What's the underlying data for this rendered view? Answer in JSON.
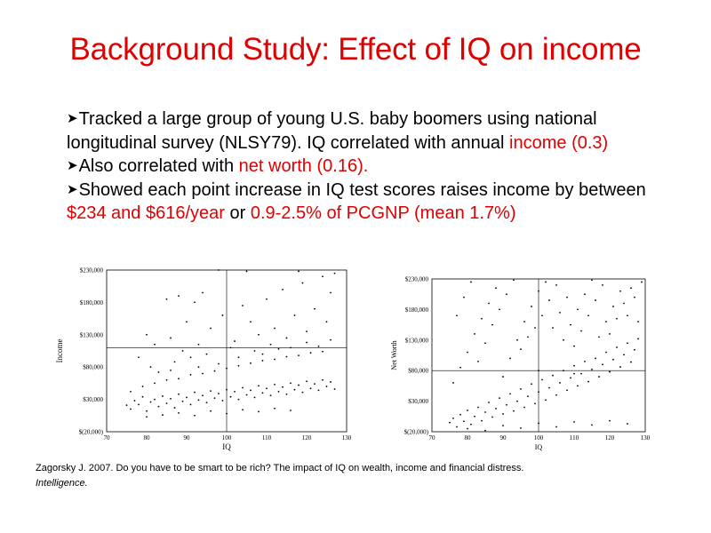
{
  "slide": {
    "title": "Background Study: Effect of IQ on income",
    "bullets": [
      {
        "segments": [
          {
            "text": "Tracked a large group of young U.S. baby boomers using national longitudinal survey (NLSY79). IQ correlated with annual ",
            "highlight": false
          },
          {
            "text": "income (0.3)",
            "highlight": true
          }
        ]
      },
      {
        "segments": [
          {
            "text": "Also correlated with ",
            "highlight": false
          },
          {
            "text": "net worth (0.16).",
            "highlight": true
          }
        ]
      },
      {
        "segments": [
          {
            "text": "Showed each point increase in IQ test scores raises income by between ",
            "highlight": false
          },
          {
            "text": "$234 and $616/year",
            "highlight": true
          },
          {
            "text": " or ",
            "highlight": false
          },
          {
            "text": "0.9-2.5% of PCGNP (mean 1.7%)",
            "highlight": true
          }
        ]
      }
    ],
    "citation": {
      "text": "Zagorsky J. 2007. Do you have to be smart to be rich? The impact of IQ on wealth, income and financial distress.",
      "journal": "Intelligence."
    }
  },
  "colors": {
    "accent": "#e00000",
    "text": "#000000"
  },
  "chart_data": [
    {
      "type": "scatter",
      "title": "",
      "xlabel": "IQ",
      "ylabel": "Income",
      "xlim": [
        70,
        130
      ],
      "ylim": [
        -20000,
        230000
      ],
      "x_ticks": [
        70,
        80,
        90,
        100,
        110,
        120,
        130
      ],
      "x_tick_labels": [
        "70",
        "80",
        "90",
        "100",
        "110",
        "120",
        "130"
      ],
      "y_ticks": [
        -20000,
        30000,
        80000,
        130000,
        180000,
        230000
      ],
      "y_tick_labels": [
        "$(20,000)",
        "$30,000",
        "$80,000",
        "$130,000",
        "$180,000",
        "$230,000"
      ],
      "reference_lines": {
        "x": 100,
        "y": 110000
      },
      "grid": false,
      "legend": "none",
      "points": [
        [
          75,
          21000
        ],
        [
          76,
          15000
        ],
        [
          77,
          28000
        ],
        [
          78,
          22000
        ],
        [
          79,
          34000
        ],
        [
          80,
          12000
        ],
        [
          81,
          26000
        ],
        [
          82,
          30000
        ],
        [
          83,
          19000
        ],
        [
          84,
          35000
        ],
        [
          85,
          24000
        ],
        [
          86,
          31000
        ],
        [
          87,
          17000
        ],
        [
          88,
          38000
        ],
        [
          89,
          27000
        ],
        [
          90,
          33000
        ],
        [
          91,
          22000
        ],
        [
          92,
          41000
        ],
        [
          93,
          29000
        ],
        [
          94,
          36000
        ],
        [
          95,
          25000
        ],
        [
          96,
          43000
        ],
        [
          97,
          32000
        ],
        [
          98,
          39000
        ],
        [
          99,
          28000
        ],
        [
          100,
          45000
        ],
        [
          101,
          34000
        ],
        [
          102,
          42000
        ],
        [
          103,
          30000
        ],
        [
          104,
          48000
        ],
        [
          105,
          37000
        ],
        [
          106,
          44000
        ],
        [
          107,
          33000
        ],
        [
          108,
          51000
        ],
        [
          109,
          40000
        ],
        [
          110,
          47000
        ],
        [
          111,
          36000
        ],
        [
          112,
          53000
        ],
        [
          113,
          42000
        ],
        [
          114,
          49000
        ],
        [
          115,
          38000
        ],
        [
          116,
          55000
        ],
        [
          117,
          45000
        ],
        [
          118,
          52000
        ],
        [
          119,
          41000
        ],
        [
          120,
          58000
        ],
        [
          121,
          47000
        ],
        [
          122,
          54000
        ],
        [
          123,
          44000
        ],
        [
          124,
          60000
        ],
        [
          125,
          50000
        ],
        [
          126,
          57000
        ],
        [
          127,
          46000
        ],
        [
          76,
          42000
        ],
        [
          79,
          50000
        ],
        [
          82,
          55000
        ],
        [
          85,
          60000
        ],
        [
          88,
          62000
        ],
        [
          91,
          68000
        ],
        [
          94,
          70000
        ],
        [
          97,
          74000
        ],
        [
          100,
          78000
        ],
        [
          103,
          82000
        ],
        [
          106,
          86000
        ],
        [
          109,
          90000
        ],
        [
          112,
          92000
        ],
        [
          115,
          96000
        ],
        [
          118,
          98000
        ],
        [
          121,
          102000
        ],
        [
          124,
          104000
        ],
        [
          80,
          3000
        ],
        [
          84,
          6000
        ],
        [
          88,
          9000
        ],
        [
          92,
          5000
        ],
        [
          96,
          12000
        ],
        [
          100,
          8000
        ],
        [
          104,
          14000
        ],
        [
          108,
          11000
        ],
        [
          112,
          16000
        ],
        [
          116,
          13000
        ],
        [
          78,
          95000
        ],
        [
          83,
          72000
        ],
        [
          87,
          88000
        ],
        [
          93,
          115000
        ],
        [
          96,
          140000
        ],
        [
          99,
          160000
        ],
        [
          102,
          120000
        ],
        [
          104,
          175000
        ],
        [
          106,
          150000
        ],
        [
          108,
          130000
        ],
        [
          110,
          185000
        ],
        [
          112,
          140000
        ],
        [
          114,
          200000
        ],
        [
          115,
          125000
        ],
        [
          117,
          160000
        ],
        [
          119,
          210000
        ],
        [
          120,
          135000
        ],
        [
          122,
          170000
        ],
        [
          124,
          220000
        ],
        [
          125,
          150000
        ],
        [
          126,
          195000
        ],
        [
          127,
          225000
        ],
        [
          85,
          185000
        ],
        [
          88,
          190000
        ],
        [
          90,
          150000
        ],
        [
          92,
          180000
        ],
        [
          94,
          195000
        ],
        [
          98,
          230000
        ],
        [
          118,
          228000
        ],
        [
          105,
          228000
        ],
        [
          80,
          130000
        ],
        [
          82,
          115000
        ],
        [
          86,
          125000
        ],
        [
          89,
          105000
        ],
        [
          91,
          95000
        ],
        [
          95,
          100000
        ],
        [
          101,
          110000
        ],
        [
          107,
          105000
        ],
        [
          111,
          115000
        ],
        [
          113,
          108000
        ],
        [
          120,
          118000
        ],
        [
          123,
          112000
        ],
        [
          126,
          122000
        ],
        [
          103,
          95000
        ],
        [
          109,
          100000
        ],
        [
          116,
          110000
        ],
        [
          98,
          85000
        ],
        [
          93,
          80000
        ],
        [
          86,
          75000
        ],
        [
          81,
          80000
        ]
      ]
    },
    {
      "type": "scatter",
      "title": "",
      "xlabel": "IQ",
      "ylabel": "Net Worth",
      "xlim": [
        70,
        130
      ],
      "ylim": [
        -20000,
        230000
      ],
      "x_ticks": [
        70,
        80,
        90,
        100,
        110,
        120,
        130
      ],
      "x_tick_labels": [
        "70",
        "80",
        "90",
        "100",
        "110",
        "120",
        "130"
      ],
      "y_ticks": [
        -20000,
        30000,
        80000,
        130000,
        180000,
        230000
      ],
      "y_tick_labels": [
        "$(20,000)",
        "$30,000",
        "$80,000",
        "$130,000",
        "$180,000",
        "$230,000"
      ],
      "reference_lines": {
        "x": 100,
        "y": 80000
      },
      "grid": false,
      "legend": "none",
      "points": [
        [
          75,
          -5000
        ],
        [
          76,
          2000
        ],
        [
          77,
          -12000
        ],
        [
          78,
          8000
        ],
        [
          79,
          -3000
        ],
        [
          80,
          15000
        ],
        [
          81,
          -8000
        ],
        [
          82,
          5000
        ],
        [
          83,
          20000
        ],
        [
          84,
          -2000
        ],
        [
          85,
          12000
        ],
        [
          86,
          28000
        ],
        [
          87,
          4000
        ],
        [
          88,
          18000
        ],
        [
          89,
          35000
        ],
        [
          90,
          9000
        ],
        [
          91,
          24000
        ],
        [
          92,
          42000
        ],
        [
          93,
          14000
        ],
        [
          94,
          30000
        ],
        [
          95,
          50000
        ],
        [
          96,
          20000
        ],
        [
          97,
          38000
        ],
        [
          98,
          58000
        ],
        [
          99,
          26000
        ],
        [
          100,
          45000
        ],
        [
          101,
          65000
        ],
        [
          102,
          32000
        ],
        [
          103,
          52000
        ],
        [
          104,
          72000
        ],
        [
          105,
          40000
        ],
        [
          106,
          60000
        ],
        [
          107,
          80000
        ],
        [
          108,
          48000
        ],
        [
          109,
          68000
        ],
        [
          110,
          88000
        ],
        [
          111,
          55000
        ],
        [
          112,
          75000
        ],
        [
          113,
          95000
        ],
        [
          114,
          62000
        ],
        [
          115,
          82000
        ],
        [
          116,
          100000
        ],
        [
          117,
          70000
        ],
        [
          118,
          90000
        ],
        [
          119,
          110000
        ],
        [
          120,
          78000
        ],
        [
          121,
          98000
        ],
        [
          122,
          118000
        ],
        [
          123,
          86000
        ],
        [
          124,
          106000
        ],
        [
          125,
          125000
        ],
        [
          126,
          94000
        ],
        [
          127,
          114000
        ],
        [
          128,
          132000
        ],
        [
          76,
          60000
        ],
        [
          78,
          85000
        ],
        [
          80,
          110000
        ],
        [
          82,
          140000
        ],
        [
          84,
          165000
        ],
        [
          86,
          190000
        ],
        [
          88,
          215000
        ],
        [
          90,
          70000
        ],
        [
          92,
          100000
        ],
        [
          94,
          130000
        ],
        [
          96,
          160000
        ],
        [
          98,
          185000
        ],
        [
          100,
          210000
        ],
        [
          102,
          225000
        ],
        [
          104,
          150000
        ],
        [
          106,
          175000
        ],
        [
          108,
          200000
        ],
        [
          110,
          120000
        ],
        [
          112,
          145000
        ],
        [
          114,
          170000
        ],
        [
          116,
          195000
        ],
        [
          118,
          220000
        ],
        [
          120,
          140000
        ],
        [
          122,
          165000
        ],
        [
          124,
          190000
        ],
        [
          126,
          215000
        ],
        [
          128,
          160000
        ],
        [
          77,
          170000
        ],
        [
          79,
          200000
        ],
        [
          81,
          225000
        ],
        [
          83,
          95000
        ],
        [
          85,
          125000
        ],
        [
          87,
          155000
        ],
        [
          89,
          180000
        ],
        [
          91,
          205000
        ],
        [
          93,
          228000
        ],
        [
          95,
          115000
        ],
        [
          97,
          135000
        ],
        [
          99,
          150000
        ],
        [
          101,
          170000
        ],
        [
          103,
          195000
        ],
        [
          105,
          220000
        ],
        [
          107,
          130000
        ],
        [
          109,
          155000
        ],
        [
          111,
          180000
        ],
        [
          113,
          205000
        ],
        [
          115,
          228000
        ],
        [
          117,
          135000
        ],
        [
          119,
          160000
        ],
        [
          121,
          185000
        ],
        [
          123,
          210000
        ],
        [
          125,
          170000
        ],
        [
          127,
          200000
        ],
        [
          129,
          225000
        ],
        [
          80,
          -15000
        ],
        [
          85,
          -18000
        ],
        [
          90,
          -10000
        ],
        [
          95,
          -14000
        ],
        [
          100,
          -6000
        ],
        [
          105,
          -12000
        ],
        [
          110,
          -4000
        ],
        [
          115,
          -9000
        ],
        [
          120,
          -2000
        ],
        [
          125,
          -7000
        ],
        [
          100,
          80000
        ],
        [
          110,
          75000
        ]
      ]
    }
  ]
}
